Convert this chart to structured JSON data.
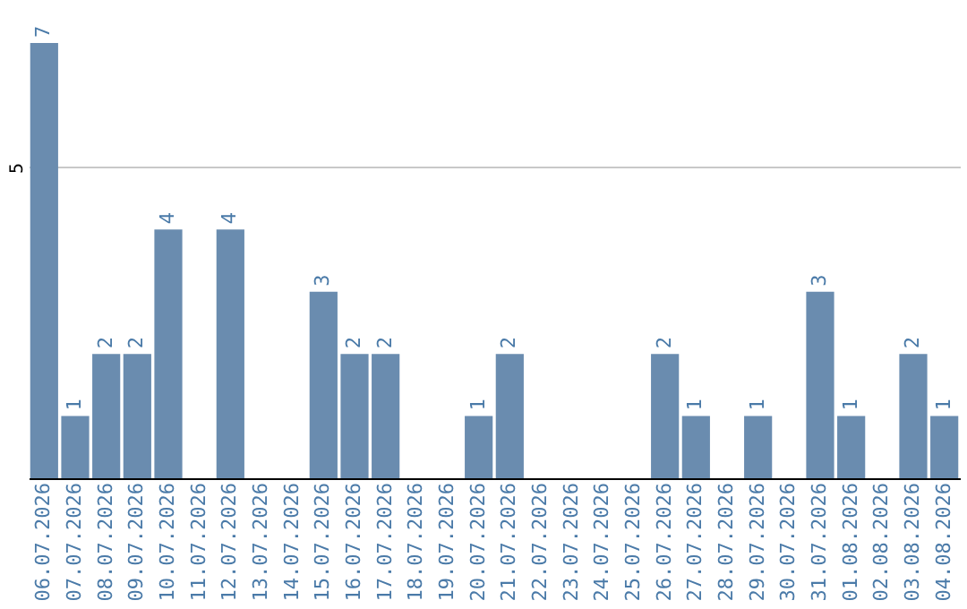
{
  "chart_data": {
    "type": "bar",
    "categories": [
      "06.07.2026",
      "07.07.2026",
      "08.07.2026",
      "09.07.2026",
      "10.07.2026",
      "11.07.2026",
      "12.07.2026",
      "13.07.2026",
      "14.07.2026",
      "15.07.2026",
      "16.07.2026",
      "17.07.2026",
      "18.07.2026",
      "19.07.2026",
      "20.07.2026",
      "21.07.2026",
      "22.07.2026",
      "23.07.2026",
      "24.07.2026",
      "25.07.2026",
      "26.07.2026",
      "27.07.2026",
      "28.07.2026",
      "29.07.2026",
      "30.07.2026",
      "31.07.2026",
      "01.08.2026",
      "02.08.2026",
      "03.08.2026",
      "04.08.2026"
    ],
    "values": [
      7,
      1,
      2,
      2,
      4,
      0,
      4,
      0,
      0,
      3,
      2,
      2,
      0,
      0,
      1,
      2,
      0,
      0,
      0,
      0,
      2,
      1,
      0,
      1,
      0,
      3,
      1,
      0,
      2,
      1
    ],
    "value_labels": [
      "7",
      "1",
      "2",
      "2",
      "4",
      null,
      "4",
      null,
      null,
      "3",
      "2",
      "2",
      null,
      null,
      "1",
      "2",
      null,
      null,
      null,
      null,
      "2",
      "1",
      null,
      "1",
      null,
      "3",
      "1",
      null,
      "2",
      "1"
    ],
    "color": "#6a8caf",
    "ylim": [
      0,
      7
    ],
    "yticks": [
      5
    ],
    "grid": "y"
  }
}
